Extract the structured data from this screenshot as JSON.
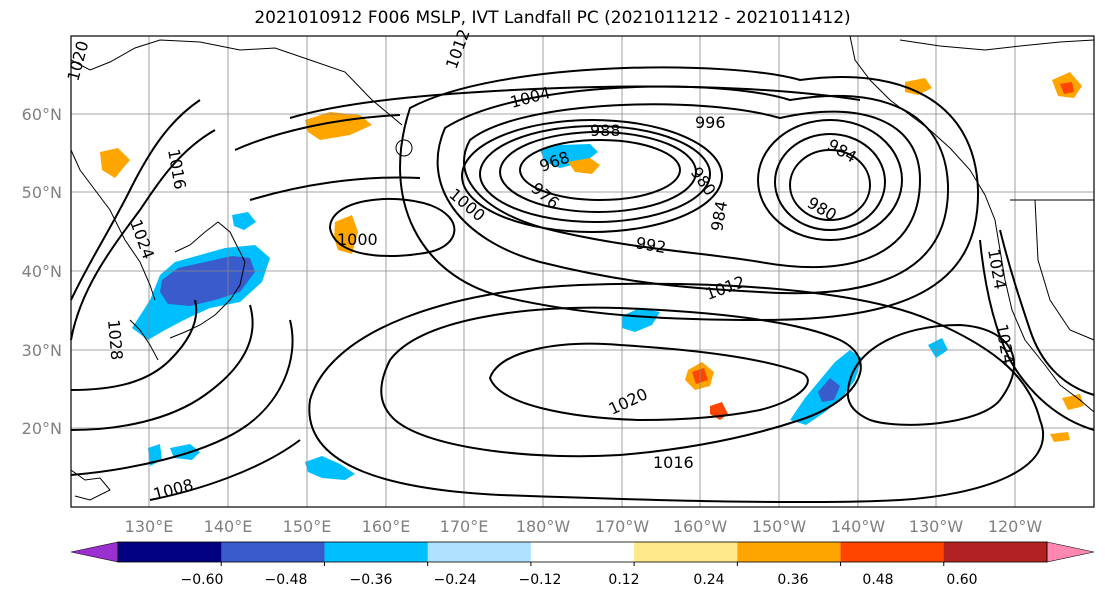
{
  "title": "2021010912 F006 MSLP, IVT Landfall PC (2021011212 - 2021011412)",
  "lat_labels": [
    "60°N",
    "50°N",
    "40°N",
    "30°N",
    "20°N"
  ],
  "lon_labels": [
    "130°E",
    "140°E",
    "150°E",
    "160°E",
    "170°E",
    "180°W",
    "170°W",
    "160°W",
    "150°W",
    "140°W",
    "130°W",
    "120°W"
  ],
  "contour_labels": [
    "1020",
    "1012",
    "1016",
    "1024",
    "1028",
    "1008",
    "1004",
    "996",
    "988",
    "968",
    "976",
    "1000",
    "1000",
    "980",
    "984",
    "984",
    "980",
    "992",
    "1012",
    "1020",
    "1016",
    "1024",
    "1024"
  ],
  "colorbar": {
    "tick_labels": [
      "−0.60",
      "−0.48",
      "−0.36",
      "−0.24",
      "−0.12",
      "0.12",
      "0.24",
      "0.36",
      "0.48",
      "0.60"
    ],
    "colors": [
      "#9b30d0",
      "#000080",
      "#3a5bcc",
      "#00bfff",
      "#b0e2ff",
      "#ffffff",
      "#ffe98a",
      "#ffa500",
      "#ff4500",
      "#b22222",
      "#ff88b0"
    ]
  },
  "colors": {
    "contour": "#000000",
    "grid": "#888888",
    "axis_label": "#808080"
  }
}
